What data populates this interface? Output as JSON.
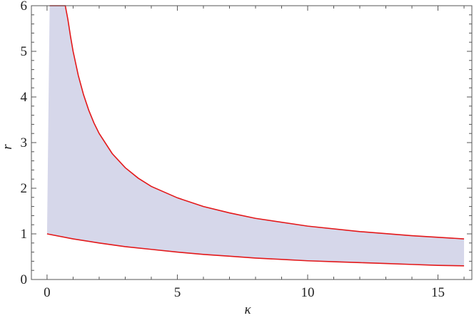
{
  "chart_data": {
    "type": "area",
    "title": "",
    "xlabel": "κ",
    "ylabel": "r",
    "xlim": [
      -0.6,
      16.3
    ],
    "ylim": [
      0,
      6
    ],
    "x_ticks": [
      0,
      5,
      10,
      15
    ],
    "y_ticks": [
      0,
      1,
      2,
      3,
      4,
      5,
      6
    ],
    "x_minor_step": 1,
    "y_minor_step": 0.2,
    "grid": false,
    "frame": true,
    "colors": {
      "boundary": "#e3181a",
      "fill": "#d6d7ea",
      "axis": "#555555"
    },
    "series": [
      {
        "role": "upper",
        "x": [
          0.1,
          0.2,
          0.3,
          0.4,
          0.5,
          0.6,
          0.7,
          0.8,
          0.9,
          1.0,
          1.2,
          1.4,
          1.6,
          1.8,
          2.0,
          2.5,
          3.0,
          3.5,
          4.0,
          5.0,
          6.0,
          7.0,
          8.0,
          10.0,
          12.0,
          14.0,
          16.0
        ],
        "y": [
          6.0,
          6.0,
          6.0,
          6.0,
          6.0,
          6.0,
          6.0,
          5.7,
          5.33,
          5.0,
          4.47,
          4.05,
          3.71,
          3.43,
          3.2,
          2.76,
          2.45,
          2.22,
          2.04,
          1.79,
          1.6,
          1.46,
          1.34,
          1.17,
          1.05,
          0.96,
          0.89
        ]
      },
      {
        "role": "lower",
        "x": [
          0,
          1,
          2,
          3,
          4,
          5,
          6,
          7,
          8,
          9,
          10,
          11,
          12,
          13,
          14,
          15,
          16
        ],
        "y": [
          1.0,
          0.89,
          0.8,
          0.72,
          0.66,
          0.6,
          0.55,
          0.51,
          0.47,
          0.44,
          0.41,
          0.39,
          0.37,
          0.35,
          0.33,
          0.31,
          0.3
        ]
      }
    ],
    "shaded_region": {
      "between": [
        "upper",
        "lower"
      ],
      "x_range": [
        0,
        16
      ]
    }
  }
}
